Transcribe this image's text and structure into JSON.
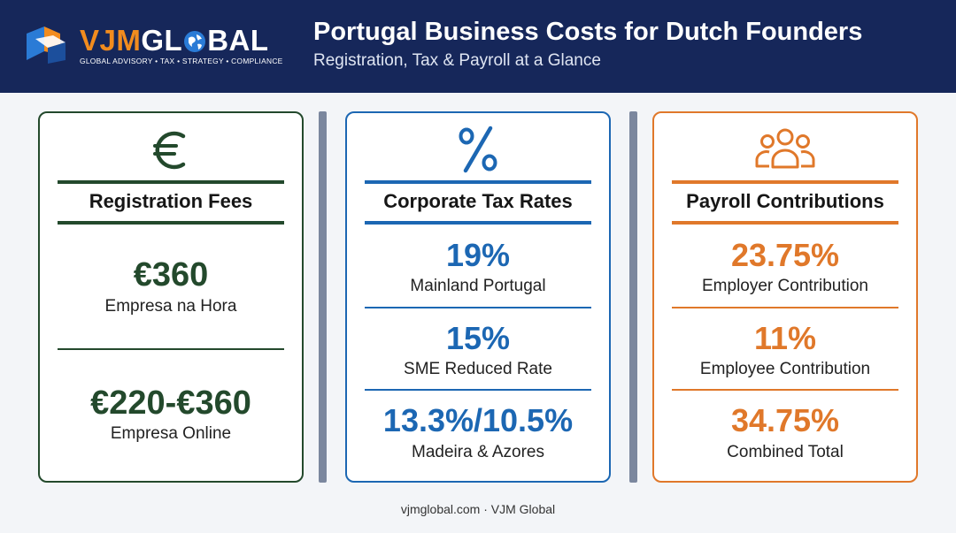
{
  "brand": {
    "name_part1": "VJM",
    "name_part2a": "GL",
    "name_part2b": "BAL",
    "tagline": "GLOBAL ADVISORY • TAX • STRATEGY • COMPLIANCE",
    "colors": {
      "navy": "#16275a",
      "orange": "#f28c1e",
      "blue": "#2a7bd6"
    }
  },
  "header": {
    "title": "Portugal Business Costs for Dutch Founders",
    "subtitle": "Registration, Tax & Payroll at a Glance"
  },
  "cards": [
    {
      "icon": "euro-icon",
      "heading": "Registration Fees",
      "color": "#23492c",
      "items": [
        {
          "value": "€360",
          "label": "Empresa na Hora"
        },
        {
          "value": "€220-€360",
          "label": "Empresa Online"
        }
      ]
    },
    {
      "icon": "percent-icon",
      "heading": "Corporate Tax Rates",
      "color": "#1c67b3",
      "items": [
        {
          "value": "19%",
          "label": "Mainland Portugal"
        },
        {
          "value": "15%",
          "label": "SME Reduced Rate"
        },
        {
          "value": "13.3%/10.5%",
          "label": "Madeira & Azores"
        }
      ]
    },
    {
      "icon": "people-icon",
      "heading": "Payroll Contributions",
      "color": "#e0782a",
      "items": [
        {
          "value": "23.75%",
          "label": "Employer Contribution"
        },
        {
          "value": "11%",
          "label": "Employee Contribution"
        },
        {
          "value": "34.75%",
          "label": "Combined Total"
        }
      ]
    }
  ],
  "footer": {
    "text": "vjmglobal.com · VJM Global"
  }
}
